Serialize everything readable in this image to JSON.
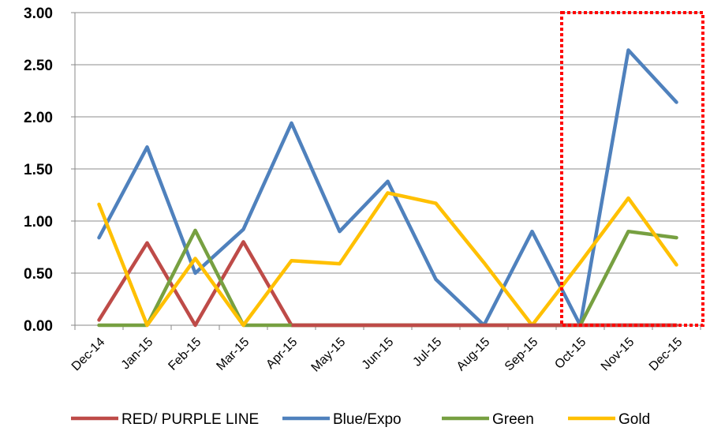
{
  "chart_data": {
    "type": "line",
    "categories": [
      "Dec-14",
      "Jan-15",
      "Feb-15",
      "Mar-15",
      "Apr-15",
      "May-15",
      "Jun-15",
      "Jul-15",
      "Aug-15",
      "Sep-15",
      "Oct-15",
      "Nov-15",
      "Dec-15"
    ],
    "ylim": [
      0,
      3
    ],
    "yticks": [
      "0.00",
      "0.50",
      "1.00",
      "1.50",
      "2.00",
      "2.50",
      "3.00"
    ],
    "grid": true,
    "legend_position": "bottom",
    "series": [
      {
        "name": "RED/ PURPLE LINE",
        "color": "#be4b48",
        "values": [
          0.05,
          0.79,
          0,
          0.8,
          0,
          0,
          0,
          0,
          0,
          0,
          0,
          0,
          0
        ]
      },
      {
        "name": "Blue/Expo",
        "color": "#4f81bd",
        "values": [
          0.84,
          1.71,
          0.5,
          0.92,
          1.94,
          0.9,
          1.38,
          0.44,
          0,
          0.9,
          0,
          2.64,
          2.14
        ]
      },
      {
        "name": "Green",
        "color": "#77a041",
        "values": [
          0,
          0,
          0.91,
          0,
          0,
          0,
          0,
          0,
          0,
          0,
          0,
          0.9,
          0.84
        ]
      },
      {
        "name": "Gold",
        "color": "#ffc000",
        "values": [
          1.16,
          0,
          0.64,
          0,
          0.62,
          0.59,
          1.27,
          1.17,
          0.6,
          0,
          0.6,
          1.22,
          0.58
        ]
      }
    ],
    "highlight": {
      "from_category": "Oct-15",
      "to_category": "Dec-15",
      "style": "red dotted box"
    }
  }
}
